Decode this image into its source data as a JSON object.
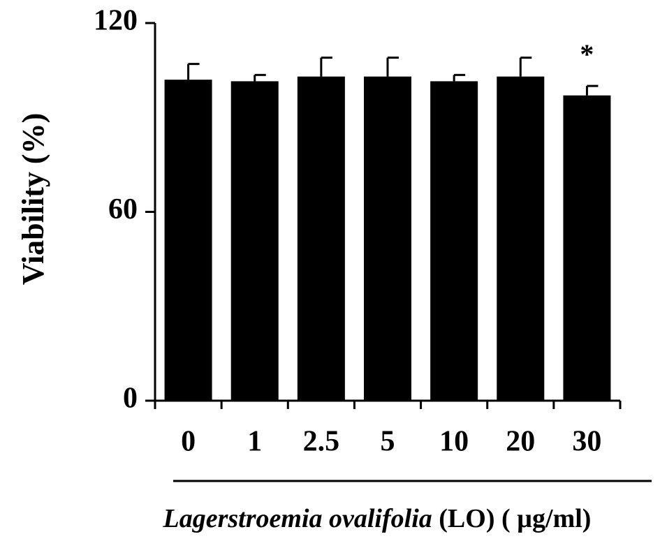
{
  "chart_data": {
    "type": "bar",
    "categories": [
      "0",
      "1",
      "2.5",
      "5",
      "10",
      "20",
      "30"
    ],
    "series": [
      {
        "values": [
          102,
          101.5,
          103,
          103,
          101.5,
          103,
          97
        ],
        "errors": [
          5,
          2,
          6,
          6,
          2,
          6,
          3
        ]
      }
    ],
    "significance": [
      "",
      "",
      "",
      "",
      "",
      "",
      "*"
    ],
    "ylim": [
      0,
      120
    ],
    "yticks": [
      0,
      60,
      120
    ],
    "ylabel": "Viability (%)",
    "xlabel_italic": "Lagerstroemia ovalifolia",
    "xlabel_rest": " (LO) ( µg/ml)",
    "bar_color": "#000000",
    "grid": false,
    "legend": "none"
  }
}
